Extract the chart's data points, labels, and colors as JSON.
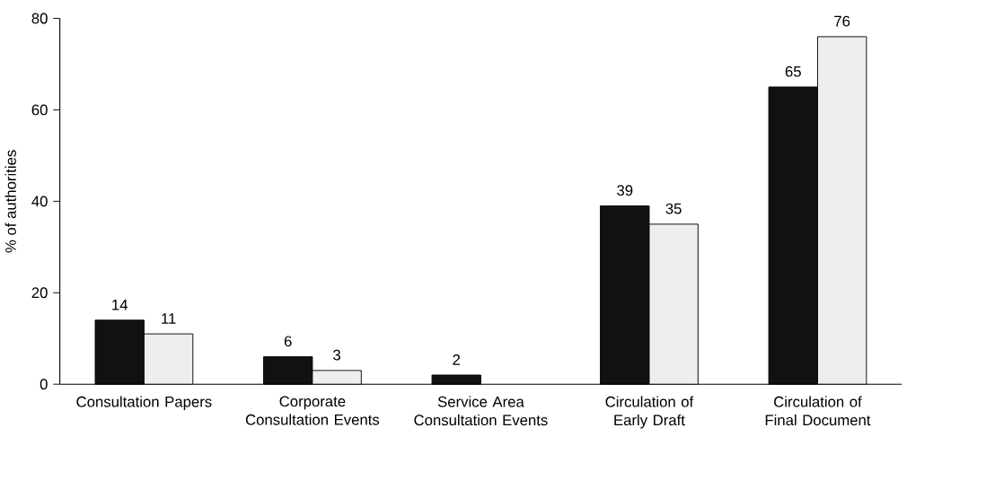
{
  "chart_data": {
    "type": "bar",
    "ylabel": "% of authorities",
    "categories": [
      "Consultation Papers",
      "Corporate Consultation Events",
      "Service Area Consultation Events",
      "Circulation of Early Draft",
      "Circulation of Final Document"
    ],
    "series": [
      {
        "color": "#111111",
        "values": [
          14,
          6,
          2,
          39,
          65
        ]
      },
      {
        "color": "#eeeeee",
        "values": [
          11,
          3,
          null,
          35,
          76
        ]
      }
    ],
    "ylim": [
      0,
      80
    ],
    "yticks": [
      0,
      20,
      40,
      60,
      80
    ],
    "data_labels": true
  }
}
